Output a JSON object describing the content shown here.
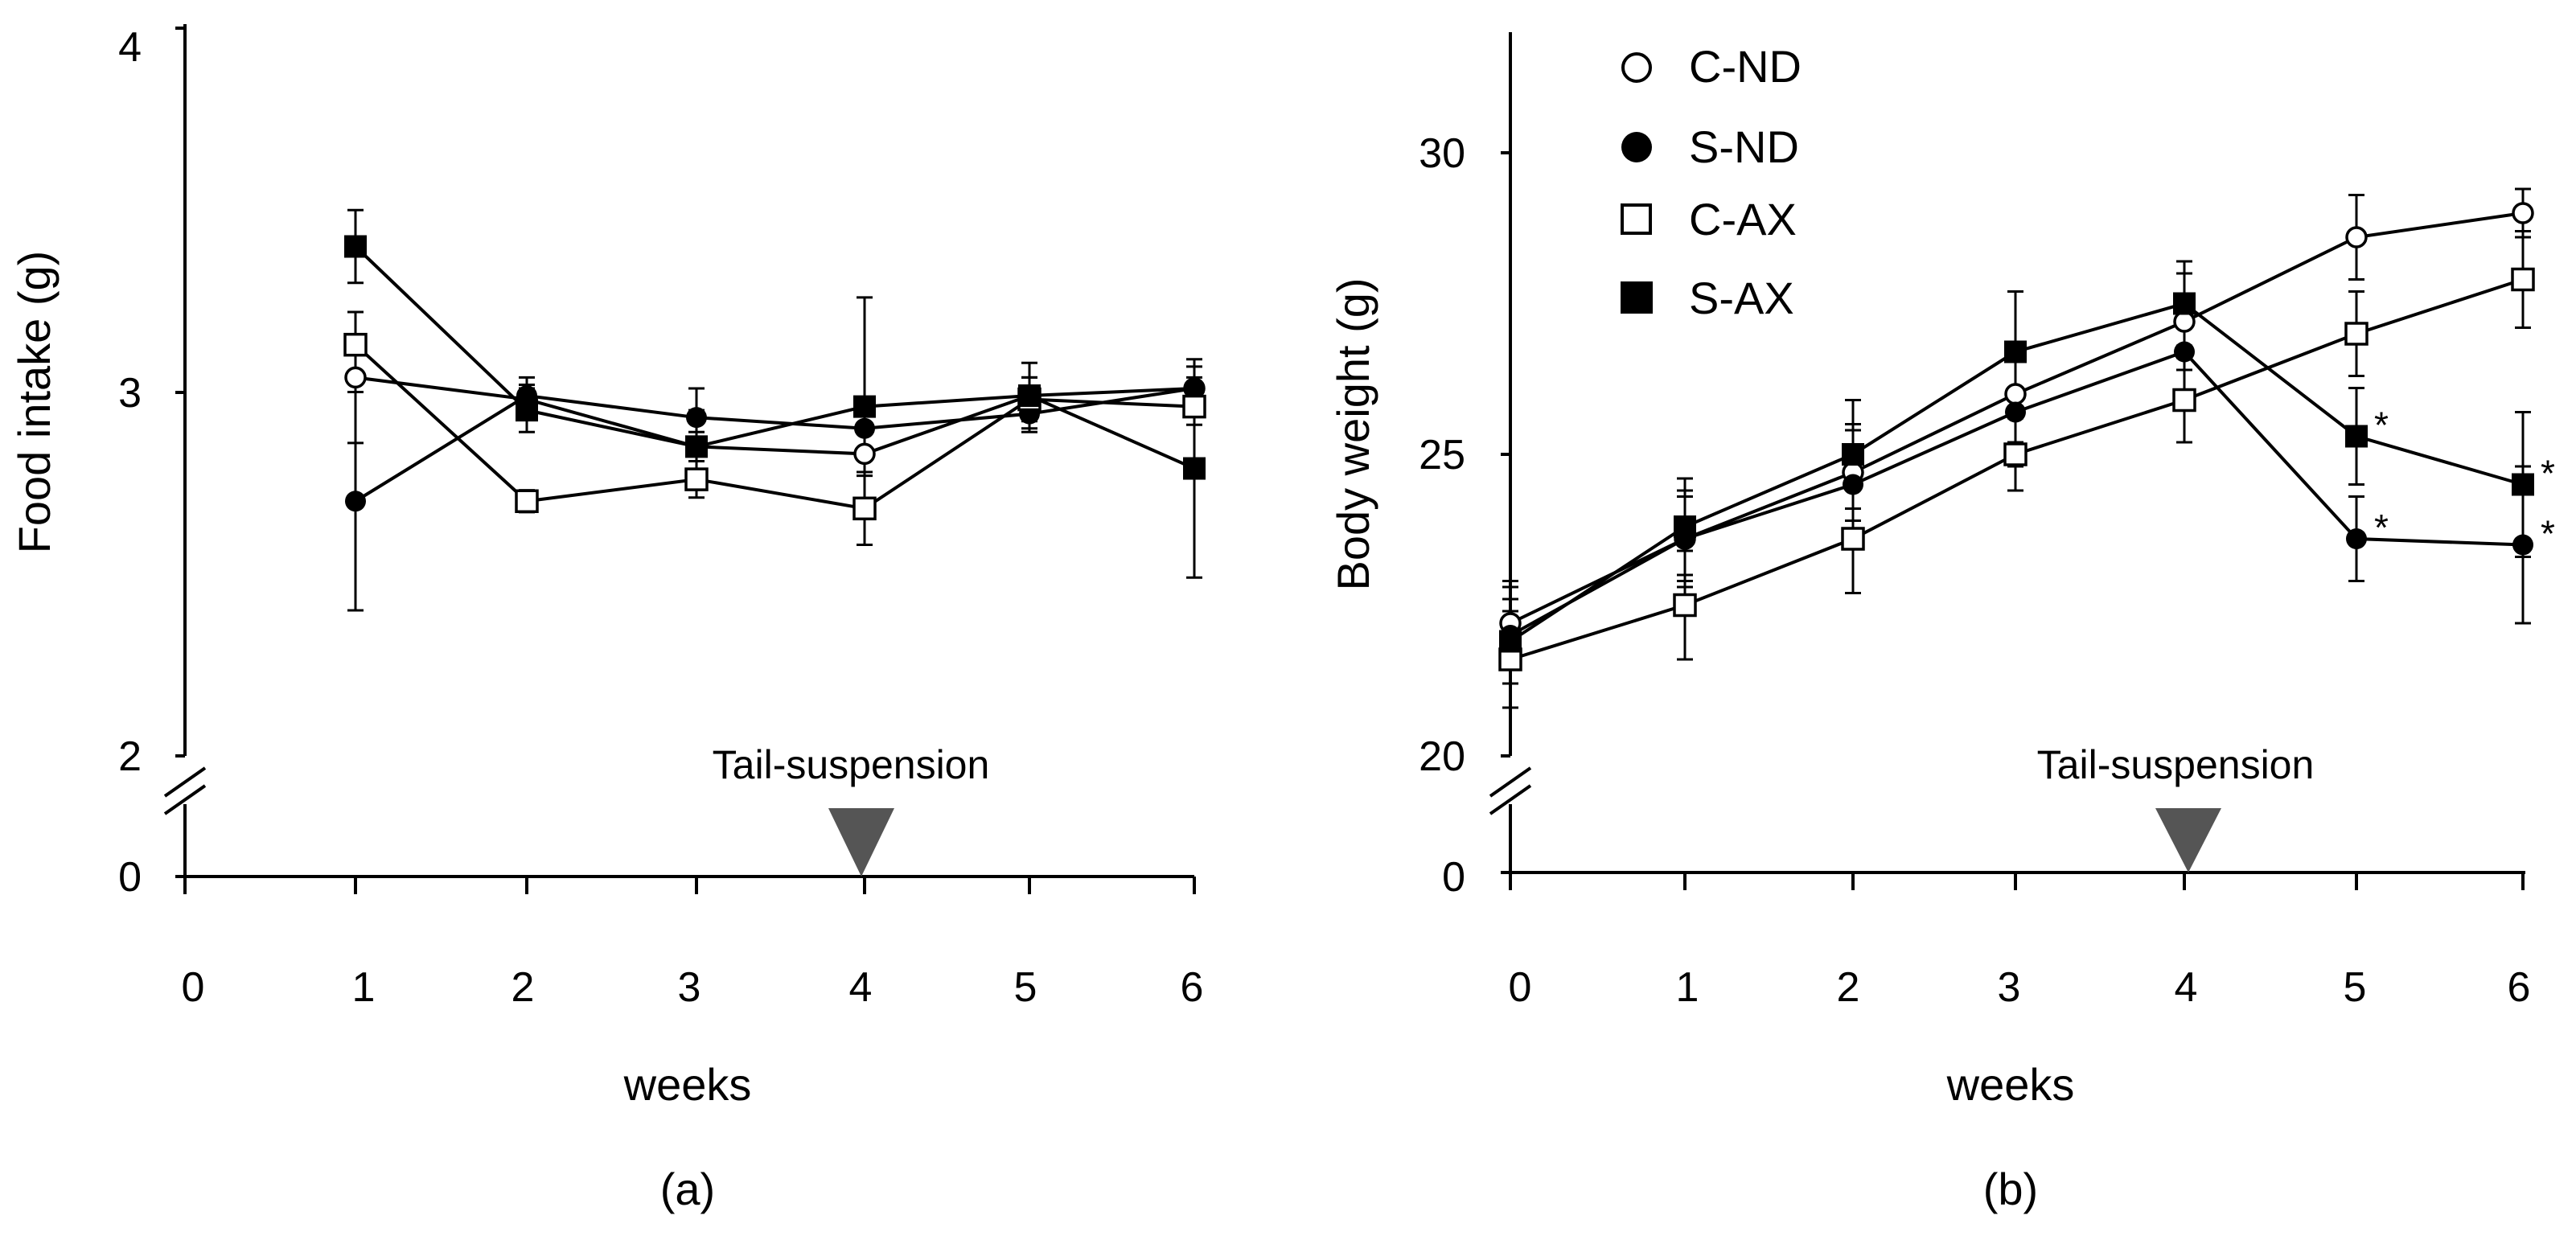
{
  "chart_data": [
    {
      "type": "line",
      "panel_label": "(a)",
      "title": "",
      "xlabel": "weeks",
      "ylabel": "Food intake (g)",
      "x_ticks": [
        0,
        1,
        2,
        3,
        4,
        5,
        6
      ],
      "y_ticks": [
        4,
        3,
        2
      ],
      "y_zero_label": "0",
      "xlim": [
        0,
        6
      ],
      "ylim": [
        2,
        4
      ],
      "axis_break": true,
      "annotation": {
        "text": "Tail-suspension",
        "x": 4
      },
      "x": [
        1,
        2,
        3,
        4,
        5,
        6
      ],
      "series": [
        {
          "name": "C-ND",
          "marker": "circle-open",
          "values": [
            3.04,
            2.98,
            2.85,
            2.83,
            2.99,
            3.01
          ],
          "errors": [
            0.18,
            0.04,
            0.04,
            0.06,
            0.05,
            0.06
          ]
        },
        {
          "name": "S-ND",
          "marker": "circle-filled",
          "values": [
            2.7,
            2.99,
            2.93,
            2.9,
            2.94,
            3.01
          ],
          "errors": [
            0.3,
            0.05,
            0.08,
            0.06,
            0.05,
            0.03
          ]
        },
        {
          "name": "C-AX",
          "marker": "square-open",
          "values": [
            3.13,
            2.7,
            2.76,
            2.68,
            2.98,
            2.96
          ],
          "errors": [
            0.09,
            0.03,
            0.05,
            0.1,
            0.06,
            0.05
          ]
        },
        {
          "name": "S-AX",
          "marker": "square-filled",
          "values": [
            3.4,
            2.95,
            2.85,
            2.96,
            2.99,
            2.79
          ],
          "errors": [
            0.1,
            0.06,
            0.1,
            0.3,
            0.09,
            0.3
          ]
        }
      ]
    },
    {
      "type": "line",
      "panel_label": "(b)",
      "title": "",
      "xlabel": "weeks",
      "ylabel": "Body weight (g)",
      "x_ticks": [
        0,
        1,
        2,
        3,
        4,
        5,
        6
      ],
      "y_ticks": [
        30,
        25,
        20
      ],
      "y_zero_label": "0",
      "xlim": [
        0,
        6
      ],
      "ylim": [
        20,
        32
      ],
      "axis_break": true,
      "annotation": {
        "text": "Tail-suspension",
        "x": 4
      },
      "significance": [
        {
          "series": "S-AX",
          "x": 5,
          "label": "*"
        },
        {
          "series": "S-ND",
          "x": 5,
          "label": "*"
        },
        {
          "series": "S-AX",
          "x": 6,
          "label": "*"
        },
        {
          "series": "S-ND",
          "x": 6,
          "label": "*"
        }
      ],
      "x": [
        0,
        1,
        2,
        3,
        4,
        5,
        6
      ],
      "series": [
        {
          "name": "C-ND",
          "marker": "circle-open",
          "values": [
            22.2,
            23.6,
            24.7,
            26.0,
            27.2,
            28.6,
            29.0
          ],
          "errors": [
            0.7,
            0.7,
            0.8,
            0.8,
            0.8,
            0.7,
            0.4
          ]
        },
        {
          "name": "S-ND",
          "marker": "circle-filled",
          "values": [
            22.0,
            23.6,
            24.5,
            25.7,
            26.7,
            23.6,
            23.5
          ],
          "errors": [
            0.8,
            0.8,
            0.9,
            0.9,
            0.9,
            0.7,
            1.3
          ]
        },
        {
          "name": "C-AX",
          "marker": "square-open",
          "values": [
            21.6,
            22.5,
            23.6,
            25.0,
            25.9,
            27.0,
            27.9
          ],
          "errors": [
            0.8,
            0.9,
            0.9,
            0.6,
            0.7,
            0.7,
            0.8
          ]
        },
        {
          "name": "S-AX",
          "marker": "square-filled",
          "values": [
            21.9,
            23.8,
            25.0,
            26.7,
            27.5,
            25.3,
            24.5
          ],
          "errors": [
            0.7,
            0.8,
            0.9,
            1.0,
            0.7,
            0.8,
            1.2
          ]
        }
      ]
    }
  ]
}
